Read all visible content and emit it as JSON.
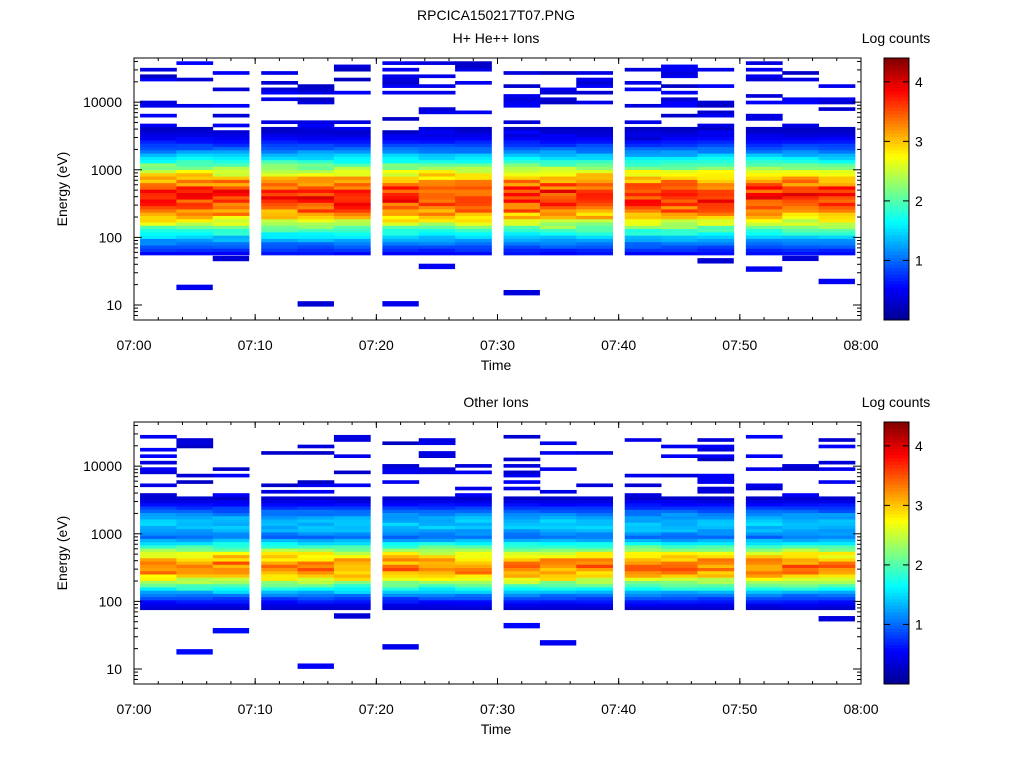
{
  "figure": {
    "title": "RPCICA150217T07.PNG"
  },
  "colors": {
    "colormap": "jet",
    "background": "#ffffff",
    "stops": [
      "#00008f",
      "#0000ff",
      "#0080ff",
      "#00ffff",
      "#80ff80",
      "#ffff00",
      "#ff8000",
      "#ff0000",
      "#800000"
    ]
  },
  "chart_data": [
    {
      "type": "heatmap",
      "title": "H+ He++ Ions",
      "xlabel": "Time",
      "ylabel": "Energy (eV)",
      "y_scale": "log",
      "xlim": [
        "07:00",
        "08:00"
      ],
      "ylim": [
        6,
        45000
      ],
      "x_ticks": [
        "07:00",
        "07:10",
        "07:20",
        "07:30",
        "07:40",
        "07:50",
        "08:00"
      ],
      "y_ticks": [
        "10",
        "100",
        "1000",
        "10000"
      ],
      "colorbar": {
        "label": "Log counts",
        "range": [
          0,
          4.4
        ],
        "ticks": [
          "1",
          "2",
          "3",
          "4"
        ]
      },
      "time_bins": [
        "07:02",
        "07:05",
        "07:08",
        "07:12",
        "07:15",
        "07:18",
        "07:22",
        "07:25",
        "07:28",
        "07:32",
        "07:35",
        "07:38",
        "07:42",
        "07:45",
        "07:48",
        "07:52",
        "07:55",
        "07:58"
      ],
      "band": {
        "energy_range_eV": [
          100,
          2500
        ],
        "peak_energy_eV": 400,
        "peak_log_counts": 3.7
      },
      "sparse_high_energy_range_eV": [
        2500,
        40000
      ],
      "sparse_low_energy_range_eV": [
        7,
        100
      ],
      "sparse_level": 0.4
    },
    {
      "type": "heatmap",
      "title": "Other Ions",
      "xlabel": "Time",
      "ylabel": "Energy (eV)",
      "y_scale": "log",
      "xlim": [
        "07:00",
        "08:00"
      ],
      "ylim": [
        6,
        45000
      ],
      "x_ticks": [
        "07:00",
        "07:10",
        "07:20",
        "07:30",
        "07:40",
        "07:50",
        "08:00"
      ],
      "y_ticks": [
        "10",
        "100",
        "1000",
        "10000"
      ],
      "colorbar": {
        "label": "Log counts",
        "range": [
          0,
          4.4
        ],
        "ticks": [
          "1",
          "2",
          "3",
          "4"
        ]
      },
      "time_bins": [
        "07:02",
        "07:05",
        "07:08",
        "07:12",
        "07:15",
        "07:18",
        "07:22",
        "07:25",
        "07:28",
        "07:32",
        "07:35",
        "07:38",
        "07:42",
        "07:45",
        "07:48",
        "07:52",
        "07:55",
        "07:58"
      ],
      "band": {
        "energy_range_eV": [
          110,
          900
        ],
        "peak_energy_eV": 330,
        "peak_log_counts": 3.3
      },
      "upper_band": {
        "energy_range_eV": [
          700,
          3500
        ],
        "peak_energy_eV": 1400,
        "peak_log_counts": 1.4
      },
      "sparse_high_energy_range_eV": [
        3500,
        30000
      ],
      "sparse_low_energy_range_eV": [
        7,
        100
      ],
      "sparse_level": 0.4
    }
  ]
}
